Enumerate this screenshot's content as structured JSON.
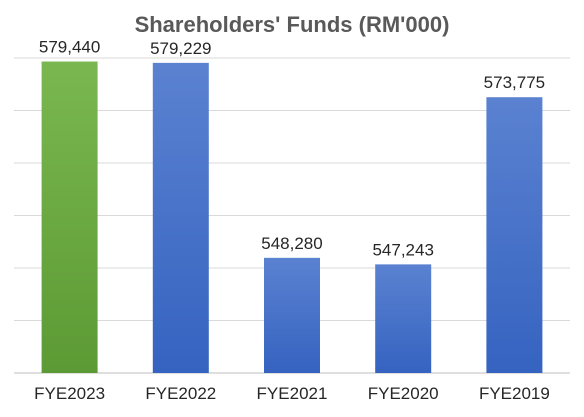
{
  "chart_data": {
    "type": "bar",
    "title": "Shareholders' Funds (RM'000)",
    "categories": [
      "FYE2023",
      "FYE2022",
      "FYE2021",
      "FYE2020",
      "FYE2019"
    ],
    "values": [
      579440,
      579229,
      548280,
      547243,
      573775
    ],
    "data_labels": [
      "579,440",
      "579,229",
      "548,280",
      "547,243",
      "573,775"
    ],
    "bar_colors": [
      "#72ad47",
      "#4472c4",
      "#4472c4",
      "#4472c4",
      "#4472c4"
    ],
    "ylim": [
      530000,
      580000
    ],
    "grid": true,
    "y_tick_labels_shown": false,
    "legend": "none",
    "xlabel": "",
    "ylabel": ""
  }
}
